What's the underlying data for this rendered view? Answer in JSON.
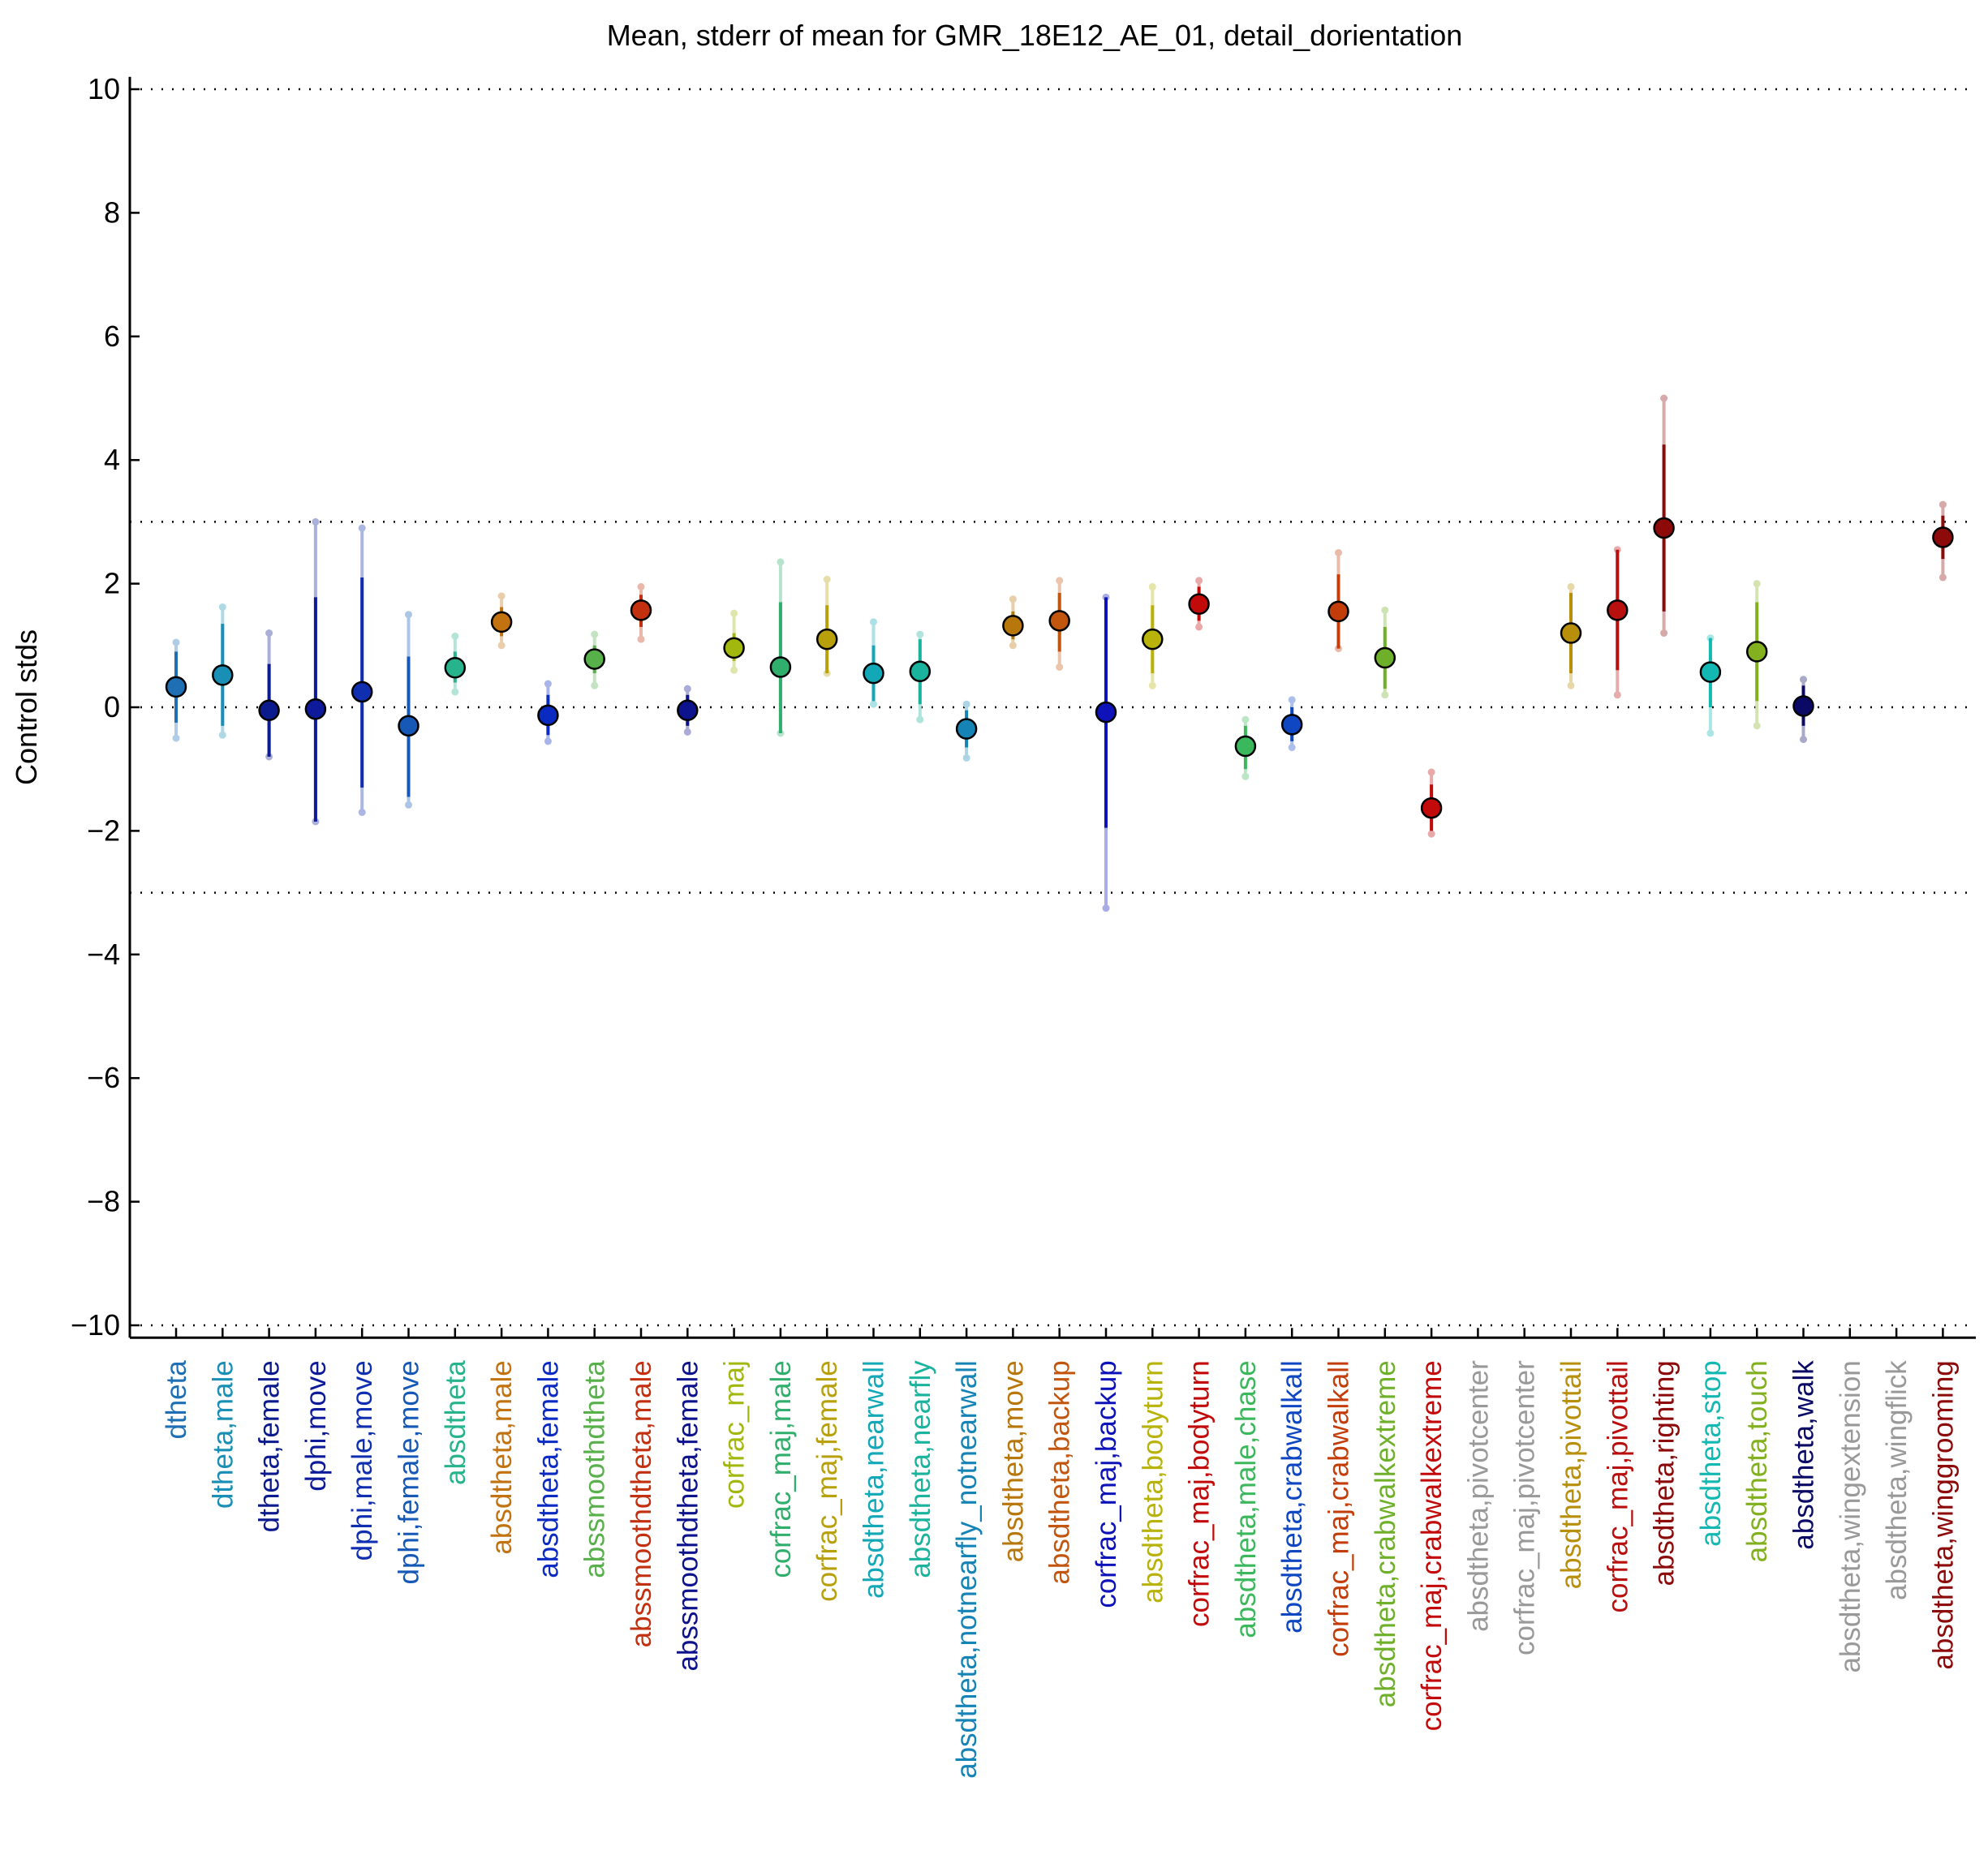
{
  "chart_data": {
    "type": "scatter",
    "title": "Mean, stderr of mean for GMR_18E12_AE_01, detail_dorientation",
    "xlabel": "",
    "ylabel": "Control stds",
    "ylim": [
      -10.2,
      10.2
    ],
    "yticks": [
      10,
      8,
      6,
      4,
      2,
      0,
      -2,
      -4,
      -6,
      -8,
      -10
    ],
    "ytick_labels": [
      "10",
      "8",
      "6",
      "4",
      "2",
      "0",
      "−2",
      "−4",
      "−6",
      "−8",
      "−10"
    ],
    "reference_lines": [
      10,
      3,
      0,
      -3,
      -10
    ],
    "grid": false,
    "legend": "none",
    "points": [
      {
        "label": "dtheta",
        "color": "#1f6fb5",
        "mean": 0.33,
        "se_low": -0.25,
        "se_high": 0.9,
        "ext_low": -0.5,
        "ext_high": 1.05
      },
      {
        "label": "dtheta,male",
        "color": "#1a8fb5",
        "mean": 0.52,
        "se_low": -0.3,
        "se_high": 1.35,
        "ext_low": -0.45,
        "ext_high": 1.62
      },
      {
        "label": "dtheta,female",
        "color": "#0b1a8c",
        "mean": -0.05,
        "se_low": -0.8,
        "se_high": 0.7,
        "ext_low": -0.8,
        "ext_high": 1.2
      },
      {
        "label": "dphi,move",
        "color": "#0d1a99",
        "mean": -0.03,
        "se_low": -1.85,
        "se_high": 1.78,
        "ext_low": -1.85,
        "ext_high": 3.0
      },
      {
        "label": "dphi,male,move",
        "color": "#0f2fb0",
        "mean": 0.25,
        "se_low": -1.3,
        "se_high": 2.1,
        "ext_low": -1.7,
        "ext_high": 2.9
      },
      {
        "label": "dphi,female,move",
        "color": "#1658b5",
        "mean": -0.3,
        "se_low": -1.45,
        "se_high": 0.82,
        "ext_low": -1.58,
        "ext_high": 1.5
      },
      {
        "label": "absdtheta",
        "color": "#27b38c",
        "mean": 0.64,
        "se_low": 0.4,
        "se_high": 0.9,
        "ext_low": 0.25,
        "ext_high": 1.15
      },
      {
        "label": "absdtheta,male",
        "color": "#c2720f",
        "mean": 1.38,
        "se_low": 1.15,
        "se_high": 1.62,
        "ext_low": 1.0,
        "ext_high": 1.8
      },
      {
        "label": "absdtheta,female",
        "color": "#0a2ac2",
        "mean": -0.13,
        "se_low": -0.45,
        "se_high": 0.2,
        "ext_low": -0.55,
        "ext_high": 0.38
      },
      {
        "label": "abssmoothdtheta",
        "color": "#57b04a",
        "mean": 0.78,
        "se_low": 0.55,
        "se_high": 1.0,
        "ext_low": 0.35,
        "ext_high": 1.18
      },
      {
        "label": "abssmoothdtheta,male",
        "color": "#c2300f",
        "mean": 1.57,
        "se_low": 1.3,
        "se_high": 1.82,
        "ext_low": 1.1,
        "ext_high": 1.95
      },
      {
        "label": "abssmoothdtheta,female",
        "color": "#0d138c",
        "mean": -0.05,
        "se_low": -0.3,
        "se_high": 0.2,
        "ext_low": -0.4,
        "ext_high": 0.3
      },
      {
        "label": "corfrac_maj",
        "color": "#a3b80f",
        "mean": 0.96,
        "se_low": 0.75,
        "se_high": 1.2,
        "ext_low": 0.6,
        "ext_high": 1.52
      },
      {
        "label": "corfrac_maj,male",
        "color": "#2fae6c",
        "mean": 0.65,
        "se_low": -0.42,
        "se_high": 1.7,
        "ext_low": -0.42,
        "ext_high": 2.35
      },
      {
        "label": "corfrac_maj,female",
        "color": "#b8a00a",
        "mean": 1.1,
        "se_low": 0.55,
        "se_high": 1.65,
        "ext_low": 0.55,
        "ext_high": 2.07
      },
      {
        "label": "absdtheta,nearwall",
        "color": "#13a8b8",
        "mean": 0.55,
        "se_low": 0.1,
        "se_high": 1.0,
        "ext_low": 0.05,
        "ext_high": 1.38
      },
      {
        "label": "absdtheta,nearfly",
        "color": "#19b39e",
        "mean": 0.58,
        "se_low": 0.05,
        "se_high": 1.1,
        "ext_low": -0.2,
        "ext_high": 1.18
      },
      {
        "label": "absdtheta,notnearfly_notnearwall",
        "color": "#1583b5",
        "mean": -0.35,
        "se_low": -0.65,
        "se_high": -0.05,
        "ext_low": -0.82,
        "ext_high": 0.05
      },
      {
        "label": "absdtheta,move",
        "color": "#b8770a",
        "mean": 1.32,
        "se_low": 1.1,
        "se_high": 1.55,
        "ext_low": 1.0,
        "ext_high": 1.75
      },
      {
        "label": "absdtheta,backup",
        "color": "#c2560f",
        "mean": 1.4,
        "se_low": 0.9,
        "se_high": 1.85,
        "ext_low": 0.65,
        "ext_high": 2.05
      },
      {
        "label": "corfrac_maj,backup",
        "color": "#0d13b8",
        "mean": -0.08,
        "se_low": -1.95,
        "se_high": 1.78,
        "ext_low": -3.25,
        "ext_high": 1.78
      },
      {
        "label": "absdtheta,bodyturn",
        "color": "#b8b30a",
        "mean": 1.1,
        "se_low": 0.55,
        "se_high": 1.65,
        "ext_low": 0.35,
        "ext_high": 1.95
      },
      {
        "label": "corfrac_maj,bodyturn",
        "color": "#c20a0a",
        "mean": 1.67,
        "se_low": 1.4,
        "se_high": 1.95,
        "ext_low": 1.3,
        "ext_high": 2.05
      },
      {
        "label": "absdtheta,male,chase",
        "color": "#3cb85c",
        "mean": -0.63,
        "se_low": -1.0,
        "se_high": -0.3,
        "ext_low": -1.12,
        "ext_high": -0.2
      },
      {
        "label": "absdtheta,crabwalkall",
        "color": "#0f47c2",
        "mean": -0.28,
        "se_low": -0.55,
        "se_high": 0.0,
        "ext_low": -0.65,
        "ext_high": 0.12
      },
      {
        "label": "corfrac_maj,crabwalkall",
        "color": "#c23d0a",
        "mean": 1.55,
        "se_low": 0.95,
        "se_high": 2.15,
        "ext_low": 0.95,
        "ext_high": 2.5
      },
      {
        "label": "absdtheta,crabwalkextreme",
        "color": "#6fb02a",
        "mean": 0.8,
        "se_low": 0.3,
        "se_high": 1.3,
        "ext_low": 0.2,
        "ext_high": 1.57
      },
      {
        "label": "corfrac_maj,crabwalkextreme",
        "color": "#c20a0a",
        "mean": -1.63,
        "se_low": -2.0,
        "se_high": -1.25,
        "ext_low": -2.05,
        "ext_high": -1.05
      },
      {
        "label": "absdtheta,pivotcenter",
        "color": "#999999",
        "mean": null
      },
      {
        "label": "corfrac_maj,pivotcenter",
        "color": "#999999",
        "mean": null
      },
      {
        "label": "absdtheta,pivottail",
        "color": "#b88f0a",
        "mean": 1.2,
        "se_low": 0.55,
        "se_high": 1.85,
        "ext_low": 0.35,
        "ext_high": 1.95
      },
      {
        "label": "corfrac_maj,pivottail",
        "color": "#b80f0f",
        "mean": 1.57,
        "se_low": 0.6,
        "se_high": 2.55,
        "ext_low": 0.2,
        "ext_high": 2.55
      },
      {
        "label": "absdtheta,righting",
        "color": "#8c0a0a",
        "mean": 2.9,
        "se_low": 1.55,
        "se_high": 4.25,
        "ext_low": 1.2,
        "ext_high": 5.0
      },
      {
        "label": "absdtheta,stop",
        "color": "#13b8b3",
        "mean": 0.57,
        "se_low": 0.0,
        "se_high": 1.12,
        "ext_low": -0.42,
        "ext_high": 1.12
      },
      {
        "label": "absdtheta,touch",
        "color": "#83b01f",
        "mean": 0.9,
        "se_low": 0.1,
        "se_high": 1.7,
        "ext_low": -0.3,
        "ext_high": 2.0
      },
      {
        "label": "absdtheta,walk",
        "color": "#0a0a66",
        "mean": 0.02,
        "se_low": -0.3,
        "se_high": 0.35,
        "ext_low": -0.52,
        "ext_high": 0.45
      },
      {
        "label": "absdtheta,wingextension",
        "color": "#999999",
        "mean": null
      },
      {
        "label": "absdtheta,wingflick",
        "color": "#999999",
        "mean": null
      },
      {
        "label": "absdtheta,winggrooming",
        "color": "#8c0a0a",
        "mean": 2.75,
        "se_low": 2.4,
        "se_high": 3.1,
        "ext_low": 2.1,
        "ext_high": 3.28
      }
    ]
  }
}
